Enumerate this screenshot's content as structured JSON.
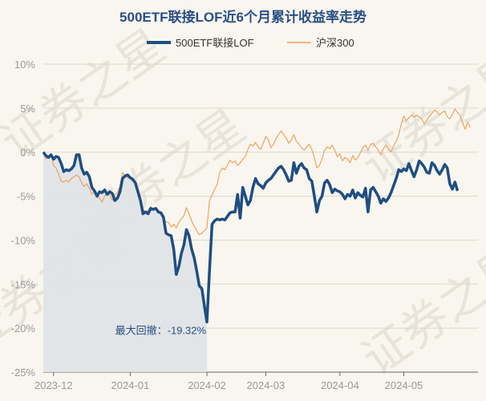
{
  "chart_data": {
    "type": "line",
    "title": "500ETF联接LOF近6个月累计收益率走势",
    "xlabel": "",
    "ylabel": "",
    "ylim": [
      -25,
      10
    ],
    "yticks": [
      10,
      5,
      0,
      -5,
      -10,
      -15,
      -20,
      -25
    ],
    "ytick_labels": [
      "10%",
      "5%",
      "0%",
      "-5%",
      "-10%",
      "-15%",
      "-20%",
      "-25%"
    ],
    "x_domain": [
      0,
      170
    ],
    "xticks": [
      {
        "pos": 4,
        "label": "2023-12"
      },
      {
        "pos": 34,
        "label": "2024-01"
      },
      {
        "pos": 64,
        "label": "2024-02"
      },
      {
        "pos": 87,
        "label": "2024-03"
      },
      {
        "pos": 116,
        "label": "2024-04"
      },
      {
        "pos": 141,
        "label": "2024-05"
      }
    ],
    "grid": true,
    "legend": "top-center",
    "series": [
      {
        "name": "500ETF联接LOF",
        "color": "#1f4e82",
        "values": [
          0,
          -0.4,
          -0.6,
          -0.3,
          -0.8,
          -0.5,
          -0.6,
          -1.3,
          -2.2,
          -2.0,
          -2.1,
          -1.9,
          -1.5,
          -0.3,
          -0.3,
          -1.8,
          -2.5,
          -2.3,
          -2.8,
          -4.0,
          -4.4,
          -5.0,
          -4.5,
          -4.6,
          -4.3,
          -4.8,
          -4.5,
          -4.7,
          -5.5,
          -5.2,
          -4.5,
          -3.0,
          -2.7,
          -2.6,
          -2.9,
          -3.1,
          -3.5,
          -4.5,
          -5.5,
          -7.0,
          -6.8,
          -7.0,
          -6.4,
          -6.5,
          -6.4,
          -6.8,
          -6.9,
          -7.4,
          -9.2,
          -9.4,
          -9.5,
          -11.0,
          -13.9,
          -13.0,
          -11.5,
          -10.5,
          -8.8,
          -9.5,
          -11.0,
          -12.0,
          -13.5,
          -15.2,
          -15.5,
          -17.5,
          -19.3,
          -13.5,
          -8.2,
          -7.8,
          -7.6,
          -7.7,
          -7.6,
          -7.7,
          -7.3,
          -6.9,
          -6.8,
          -6.8,
          -4.8,
          -7.5,
          -4.0,
          -5.0,
          -6.0,
          -5.5,
          -4.0,
          -3.0,
          -3.6,
          -3.8,
          -4.1,
          -3.5,
          -3.2,
          -3.0,
          -2.6,
          -2.2,
          -1.8,
          -1.6,
          -2.0,
          -2.6,
          -3.3,
          -3.2,
          -1.2,
          -2.4,
          -1.6,
          -1.3,
          -1.8,
          -2.0,
          -3.0,
          -3.3,
          -5.0,
          -6.8,
          -5.5,
          -5.0,
          -3.5,
          -3.2,
          -3.7,
          -4.6,
          -4.2,
          -4.4,
          -4.5,
          -4.8,
          -5.3,
          -4.8,
          -5.0,
          -4.3,
          -5.2,
          -4.6,
          -4.9,
          -5.1,
          -4.1,
          -6.8,
          -4.3,
          -4.0,
          -4.5,
          -5.0,
          -5.8,
          -5.3,
          -5.6,
          -5.2,
          -4.6,
          -3.8,
          -3.0,
          -2.0,
          -2.2,
          -1.9,
          -2.1,
          -1.3,
          -2.1,
          -2.8,
          -2.0,
          -1.0,
          -1.3,
          -1.7,
          -2.3,
          -2.4,
          -1.2,
          -1.5,
          -2.1,
          -2.5,
          -2.0,
          -1.4,
          -1.8,
          -3.6,
          -4.2,
          -3.4,
          -4.4
        ]
      },
      {
        "name": "沪深300",
        "color": "#f0a35e",
        "values": [
          0,
          -0.8,
          -0.5,
          -0.2,
          -1.5,
          -1.8,
          -2.5,
          -3.3,
          -3.4,
          -3.2,
          -3.4,
          -3.0,
          -2.8,
          -2.6,
          -2.8,
          -3.5,
          -3.9,
          -3.6,
          -4.1,
          -4.8,
          -4.4,
          -5.0,
          -5.2,
          -5.7,
          -5.0,
          -4.6,
          -4.9,
          -5.5,
          -4.8,
          -4.6,
          -3.9,
          -2.3,
          -2.7,
          -2.9,
          -3.0,
          -3.3,
          -3.6,
          -4.1,
          -5.2,
          -6.5,
          -6.8,
          -6.6,
          -6.2,
          -6.6,
          -6.4,
          -6.8,
          -6.9,
          -7.6,
          -7.9,
          -8.0,
          -8.5,
          -8.2,
          -8.6,
          -8.0,
          -7.6,
          -7.2,
          -6.3,
          -7.0,
          -7.8,
          -8.4,
          -8.9,
          -9.4,
          -9.2,
          -8.9,
          -8.6,
          -5.5,
          -4.9,
          -4.2,
          -3.7,
          -2.3,
          -1.8,
          -2.0,
          -1.5,
          -0.9,
          -1.2,
          -1.0,
          -1.5,
          -1.2,
          -0.8,
          -0.5,
          0.3,
          0.9,
          0.7,
          1.1,
          0.6,
          0.3,
          1.0,
          1.8,
          1.4,
          0.5,
          0.9,
          1.5,
          2.0,
          2.4,
          2.0,
          1.6,
          1.0,
          1.4,
          2.0,
          1.2,
          0.9,
          0.5,
          0.2,
          0.6,
          0.9,
          0.3,
          -0.6,
          -1.8,
          -1.5,
          -0.8,
          0.2,
          0.6,
          0.4,
          0.8,
          0.2,
          -0.5,
          -0.2,
          -1.0,
          -0.6,
          -0.8,
          -1.2,
          -0.4,
          -0.9,
          -0.6,
          -0.1,
          0.5,
          0.8,
          0.2,
          0.9,
          1.0,
          0.6,
          0.2,
          -0.3,
          0.4,
          0.8,
          0.3,
          0.0,
          0.7,
          1.2,
          2.0,
          3.2,
          4.1,
          3.6,
          3.9,
          4.2,
          4.0,
          4.2,
          4.0,
          3.8,
          3.2,
          3.6,
          4.1,
          4.4,
          4.8,
          4.6,
          4.2,
          4.5,
          4.7,
          4.0,
          3.8,
          4.3,
          4.9,
          4.5,
          4.2,
          3.3,
          2.6,
          3.4,
          2.8
        ]
      }
    ],
    "annotation": {
      "text": "最大回撤：-19.32%",
      "at_index": 64,
      "region_start": 0,
      "region_end": 64
    }
  },
  "watermark": "证券之星"
}
